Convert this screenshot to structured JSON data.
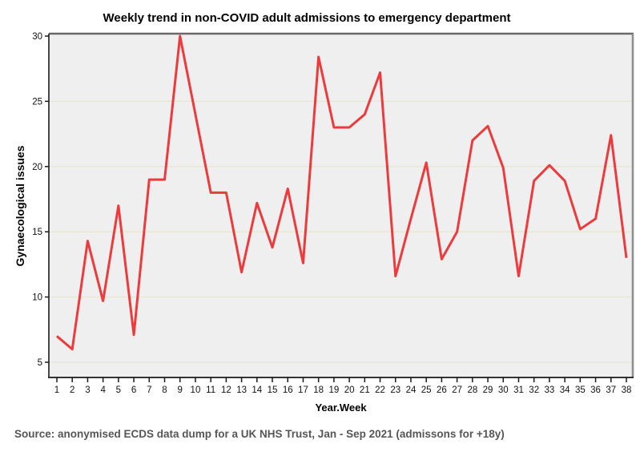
{
  "title": "Weekly trend in non-COVID adult admissions to emergency department",
  "source_note": "Source: anonymised ECDS data dump for a UK NHS Trust, Jan - Sep 2021 (admissons for +18y)",
  "chart_data": {
    "type": "line",
    "title": "Weekly trend in non-COVID adult admissions to emergency department",
    "xlabel": "Year.Week",
    "ylabel": "Gynaecological issues",
    "x": [
      1,
      2,
      3,
      4,
      5,
      6,
      7,
      8,
      9,
      10,
      11,
      12,
      13,
      14,
      15,
      16,
      17,
      18,
      19,
      20,
      21,
      22,
      23,
      24,
      25,
      26,
      27,
      28,
      29,
      30,
      31,
      32,
      33,
      34,
      35,
      36,
      37,
      38
    ],
    "values": [
      7,
      6,
      14.3,
      9.7,
      17,
      7.1,
      19,
      19,
      30,
      24,
      18,
      18,
      11.9,
      17.2,
      13.8,
      18.3,
      12.6,
      28.4,
      23,
      23,
      24,
      27.2,
      11.6,
      16,
      20.3,
      12.9,
      15,
      22,
      23.1,
      19.9,
      11.6,
      18.9,
      20.1,
      18.9,
      15.2,
      16,
      22.4,
      13
    ],
    "y_ticks": [
      5,
      10,
      15,
      20,
      25,
      30
    ],
    "ylim": [
      3.8,
      30
    ],
    "grid": "on",
    "legend": "none",
    "colors": {
      "line": "#ed3a3c",
      "plot_bg": "#efefef",
      "grid_line": "#e7e7d1",
      "frame_top": "#696969",
      "frame_right": "#8f8f8f",
      "axis": "#1a1a1a",
      "tick_text": "#111111",
      "source_text": "#565656"
    }
  }
}
